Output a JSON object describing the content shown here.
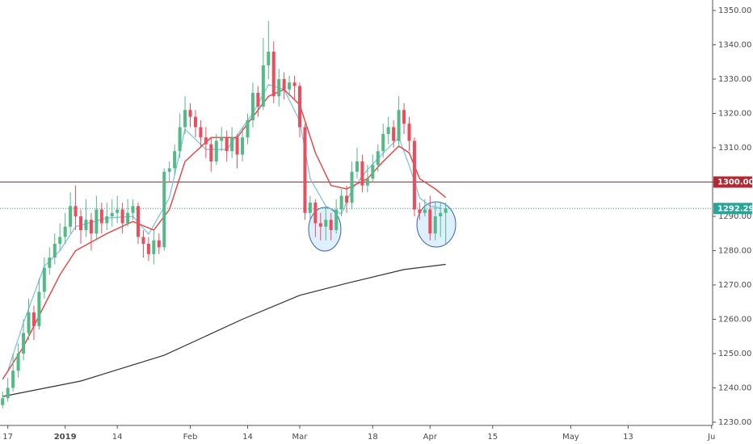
{
  "chart_data": {
    "type": "candlestick",
    "colors": {
      "up": "#53b987",
      "down": "#eb4d5c"
    },
    "ylim": [
      1230,
      1352
    ],
    "yticks": [
      {
        "value": 1230,
        "label": "1230.00"
      },
      {
        "value": 1240,
        "label": "1240.00"
      },
      {
        "value": 1250,
        "label": "1250.00"
      },
      {
        "value": 1260,
        "label": "1260.00"
      },
      {
        "value": 1270,
        "label": "1270.00"
      },
      {
        "value": 1280,
        "label": "1280.00"
      },
      {
        "value": 1290,
        "label": "1290.00"
      },
      {
        "value": 1300,
        "label": "1300.00"
      },
      {
        "value": 1310,
        "label": "1310.00"
      },
      {
        "value": 1320,
        "label": "1320.00"
      },
      {
        "value": 1330,
        "label": "1330.00"
      },
      {
        "value": 1340,
        "label": "1340.00"
      },
      {
        "value": 1350,
        "label": "1350.00"
      }
    ],
    "xlim": [
      -1.5,
      135.2
    ],
    "xticks": [
      {
        "value": 0,
        "label": "17"
      },
      {
        "value": 11,
        "label": "2019"
      },
      {
        "value": 21,
        "label": "14"
      },
      {
        "value": 35,
        "label": "Feb"
      },
      {
        "value": 46,
        "label": "14"
      },
      {
        "value": 56,
        "label": "Mar"
      },
      {
        "value": 70,
        "label": "18"
      },
      {
        "value": 81,
        "label": "Apr"
      },
      {
        "value": 93,
        "label": "15"
      },
      {
        "value": 108,
        "label": "May"
      },
      {
        "value": 119,
        "label": "13"
      },
      {
        "value": 135,
        "label": "Ju"
      }
    ],
    "candles": {
      "x": [
        -1,
        0,
        1,
        2,
        3,
        4,
        5,
        6,
        7,
        8,
        9,
        10,
        11,
        12,
        13,
        14,
        15,
        16,
        17,
        18,
        19,
        20,
        21,
        22,
        23,
        24,
        25,
        26,
        27,
        28,
        29,
        30,
        31,
        32,
        33,
        34,
        35,
        36,
        37,
        38,
        39,
        40,
        41,
        42,
        43,
        44,
        45,
        46,
        47,
        48,
        49,
        50,
        51,
        52,
        53,
        54,
        55,
        56,
        57,
        58,
        59,
        60,
        61,
        62,
        63,
        64,
        65,
        66,
        67,
        68,
        69,
        70,
        71,
        72,
        73,
        74,
        75,
        76,
        77,
        78,
        79,
        80,
        81,
        82,
        83,
        84
      ],
      "open": [
        1235,
        1237,
        1240,
        1245,
        1250,
        1256,
        1262,
        1258,
        1268,
        1275,
        1278,
        1282,
        1284,
        1287,
        1293,
        1290,
        1286,
        1289,
        1285,
        1292,
        1288,
        1290,
        1291,
        1292,
        1288,
        1291,
        1293,
        1284,
        1282,
        1279,
        1283,
        1281,
        1303,
        1304,
        1309,
        1316,
        1321,
        1319,
        1316,
        1313,
        1311,
        1306,
        1312,
        1313,
        1309,
        1313,
        1308,
        1313,
        1318,
        1326,
        1322,
        1334,
        1338,
        1325,
        1330,
        1327,
        1329,
        1328,
        1316,
        1291,
        1294,
        1288,
        1287,
        1289,
        1286,
        1292,
        1296,
        1294,
        1303,
        1306,
        1299,
        1301,
        1305,
        1309,
        1314,
        1316,
        1312,
        1321,
        1317,
        1312,
        1292,
        1291,
        1292,
        1285,
        1290,
        1291
      ],
      "high": [
        1239,
        1243,
        1250,
        1253,
        1260,
        1266,
        1264,
        1272,
        1278,
        1281,
        1285,
        1288,
        1291,
        1297,
        1299,
        1292,
        1295,
        1291,
        1296,
        1294,
        1294,
        1295,
        1296,
        1294,
        1295,
        1295,
        1294,
        1286,
        1284,
        1286,
        1285,
        1304,
        1306,
        1311,
        1320,
        1325,
        1323,
        1321,
        1318,
        1316,
        1313,
        1314,
        1316,
        1315,
        1316,
        1314,
        1316,
        1320,
        1329,
        1328,
        1342,
        1347,
        1341,
        1333,
        1332,
        1331,
        1331,
        1329,
        1317,
        1296,
        1295,
        1291,
        1293,
        1291,
        1295,
        1298,
        1299,
        1306,
        1310,
        1308,
        1305,
        1308,
        1311,
        1317,
        1319,
        1318,
        1325,
        1323,
        1319,
        1313,
        1294,
        1295,
        1296,
        1294,
        1294,
        1294
      ],
      "low": [
        1234,
        1236,
        1239,
        1243,
        1248,
        1254,
        1254,
        1257,
        1266,
        1273,
        1276,
        1280,
        1282,
        1285,
        1286,
        1282,
        1284,
        1280,
        1283,
        1285,
        1286,
        1287,
        1288,
        1285,
        1287,
        1289,
        1282,
        1278,
        1277,
        1276,
        1279,
        1280,
        1300,
        1302,
        1307,
        1314,
        1316,
        1313,
        1310,
        1307,
        1303,
        1305,
        1309,
        1306,
        1307,
        1304,
        1306,
        1311,
        1316,
        1319,
        1321,
        1330,
        1323,
        1322,
        1324,
        1325,
        1324,
        1313,
        1289,
        1289,
        1284,
        1283,
        1283,
        1283,
        1285,
        1290,
        1291,
        1292,
        1301,
        1297,
        1297,
        1300,
        1303,
        1307,
        1311,
        1310,
        1310,
        1314,
        1309,
        1290,
        1289,
        1290,
        1283,
        1283,
        1284,
        1282
      ],
      "close": [
        1237,
        1240,
        1245,
        1250,
        1256,
        1262,
        1258,
        1268,
        1275,
        1278,
        1282,
        1284,
        1287,
        1293,
        1290,
        1286,
        1289,
        1285,
        1292,
        1288,
        1290,
        1291,
        1292,
        1288,
        1291,
        1293,
        1284,
        1282,
        1279,
        1283,
        1281,
        1303,
        1304,
        1309,
        1316,
        1321,
        1319,
        1316,
        1313,
        1311,
        1306,
        1312,
        1313,
        1309,
        1313,
        1308,
        1313,
        1318,
        1326,
        1322,
        1334,
        1338,
        1325,
        1330,
        1327,
        1329,
        1328,
        1316,
        1291,
        1294,
        1288,
        1287,
        1289,
        1286,
        1292,
        1296,
        1294,
        1303,
        1306,
        1299,
        1301,
        1305,
        1309,
        1314,
        1316,
        1312,
        1321,
        1317,
        1312,
        1292,
        1291,
        1292,
        1285,
        1290,
        1291,
        1292.29
      ]
    },
    "series": [
      {
        "color": "#78c1d8",
        "x": [
          0,
          3,
          7,
          10,
          13,
          19,
          24,
          27,
          31,
          34,
          38,
          42,
          47,
          50,
          53,
          56,
          58,
          61,
          64,
          66,
          69,
          72,
          75,
          77,
          79,
          81,
          83
        ],
        "values": [
          1245,
          1259,
          1275.4,
          1280,
          1287,
          1289.5,
          1290,
          1284.8,
          1295.4,
          1315.4,
          1309.5,
          1309.5,
          1320,
          1328.4,
          1327,
          1317.8,
          1301,
          1293,
          1290.7,
          1297.8,
          1303.6,
          1308.4,
          1313,
          1304.8,
          1295.4,
          1293,
          1292.4
        ]
      },
      {
        "color": "#e8403e",
        "x": [
          -1,
          3,
          7,
          10,
          13,
          19,
          24,
          28,
          31,
          34,
          39,
          44,
          47,
          50,
          53,
          56,
          59,
          62,
          65,
          69,
          72,
          75,
          77,
          79,
          82,
          84
        ],
        "values": [
          1242.5,
          1252,
          1264,
          1273,
          1280,
          1285,
          1288.5,
          1286,
          1292,
          1306,
          1313,
          1313,
          1319,
          1325,
          1327,
          1322.5,
          1308.5,
          1299,
          1298,
          1301,
          1306,
          1310.5,
          1308.5,
          1301,
          1298,
          1295.5
        ]
      },
      {
        "color": "#333333",
        "x": [
          -1,
          14,
          30,
          45,
          56,
          65,
          76,
          84
        ],
        "values": [
          1237.5,
          1242,
          1249.5,
          1260,
          1267,
          1270.5,
          1274.5,
          1276
        ]
      }
    ],
    "price_lines": [
      {
        "value": 1300,
        "label": "1300.00",
        "color": "#b22833",
        "dashed": false
      },
      {
        "value": 1292.29,
        "label": "1292.29",
        "color": "#26a69a",
        "dashed": true
      }
    ]
  }
}
